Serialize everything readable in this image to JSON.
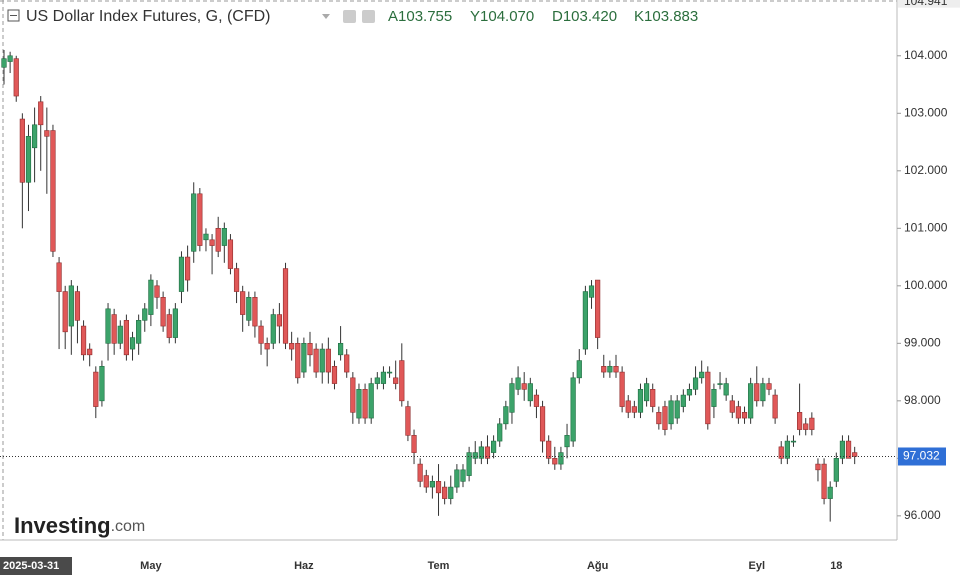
{
  "chart_data": {
    "type": "candlestick",
    "title": "US Dollar Index Futures, G, (CFD)",
    "stats": [
      "A103.755",
      "Y104.070",
      "D103.420",
      "K103.883"
    ],
    "watermark": [
      "Investing",
      ".com"
    ],
    "up_color": "#3ca36a",
    "down_color": "#e05858",
    "ylim": [
      95.58,
      104.97
    ],
    "yticks": [
      {
        "value": 96,
        "label": "96.000"
      },
      {
        "value": 97,
        "label": "97.000"
      },
      {
        "value": 98,
        "label": "98.000"
      },
      {
        "value": 99,
        "label": "99.000"
      },
      {
        "value": 100,
        "label": "100.000"
      },
      {
        "value": 101,
        "label": "101.000"
      },
      {
        "value": 102,
        "label": "102.000"
      },
      {
        "value": 103,
        "label": "103.000"
      },
      {
        "value": 104,
        "label": "104.000"
      }
    ],
    "axis_high": 104.941,
    "last_price": 97.032,
    "categories": [
      "2025-03-31",
      null,
      null,
      null,
      null,
      null,
      null,
      null,
      null,
      null,
      null,
      null,
      null,
      null,
      null,
      null,
      null,
      null,
      null,
      null,
      null,
      null,
      null,
      null,
      "May",
      null,
      null,
      null,
      null,
      null,
      null,
      null,
      null,
      null,
      null,
      null,
      null,
      null,
      null,
      null,
      null,
      null,
      null,
      null,
      null,
      null,
      null,
      null,
      null,
      "Haz",
      null,
      null,
      null,
      null,
      null,
      null,
      null,
      null,
      null,
      null,
      null,
      null,
      null,
      null,
      null,
      null,
      null,
      null,
      null,
      null,
      null,
      "Tem",
      null,
      null,
      null,
      null,
      null,
      null,
      null,
      null,
      null,
      null,
      null,
      null,
      null,
      null,
      null,
      null,
      null,
      null,
      null,
      null,
      null,
      null,
      null,
      null,
      null,
      "Ağu",
      null,
      null,
      null,
      null,
      null,
      null,
      null,
      null,
      null,
      null,
      null,
      null,
      null,
      null,
      null,
      null,
      null,
      null,
      null,
      null,
      null,
      null,
      null,
      null,
      null,
      "Eyl",
      null,
      null,
      null,
      null,
      null,
      null,
      null,
      null,
      null,
      null,
      null,
      null,
      "18",
      null,
      null,
      null
    ],
    "ohlc": [
      [
        103.8,
        104.1,
        103.5,
        103.95
      ],
      [
        103.9,
        104.07,
        103.7,
        104.0
      ],
      [
        103.95,
        104.0,
        103.2,
        103.3
      ],
      [
        102.9,
        103.0,
        101.0,
        101.8
      ],
      [
        101.8,
        102.8,
        101.3,
        102.6
      ],
      [
        102.4,
        103.1,
        101.8,
        102.8
      ],
      [
        103.2,
        103.3,
        102.0,
        102.8
      ],
      [
        102.7,
        103.1,
        101.6,
        102.6
      ],
      [
        102.7,
        102.8,
        100.5,
        100.6
      ],
      [
        100.4,
        100.5,
        98.9,
        99.9
      ],
      [
        99.9,
        100.0,
        98.9,
        99.2
      ],
      [
        99.3,
        100.1,
        98.8,
        100.0
      ],
      [
        99.9,
        100.0,
        99.0,
        99.4
      ],
      [
        99.3,
        99.4,
        98.7,
        98.8
      ],
      [
        98.9,
        99.0,
        98.6,
        98.8
      ],
      [
        98.5,
        98.6,
        97.7,
        97.9
      ],
      [
        98.0,
        98.7,
        97.9,
        98.6
      ],
      [
        99.0,
        99.7,
        98.7,
        99.6
      ],
      [
        99.5,
        99.6,
        98.8,
        99.0
      ],
      [
        99.0,
        99.4,
        98.9,
        99.3
      ],
      [
        99.4,
        99.5,
        98.7,
        98.8
      ],
      [
        98.9,
        99.2,
        98.7,
        99.1
      ],
      [
        99.0,
        99.5,
        98.8,
        99.4
      ],
      [
        99.4,
        99.7,
        99.2,
        99.6
      ],
      [
        99.5,
        100.2,
        99.3,
        100.1
      ],
      [
        100.0,
        100.1,
        99.6,
        99.8
      ],
      [
        99.8,
        99.9,
        99.2,
        99.3
      ],
      [
        99.5,
        99.6,
        99.0,
        99.1
      ],
      [
        99.1,
        99.7,
        99.0,
        99.6
      ],
      [
        99.9,
        100.6,
        99.7,
        100.5
      ],
      [
        100.5,
        100.7,
        99.9,
        100.1
      ],
      [
        100.6,
        101.8,
        100.4,
        101.6
      ],
      [
        101.6,
        101.7,
        100.6,
        100.7
      ],
      [
        100.8,
        101.0,
        100.6,
        100.9
      ],
      [
        100.8,
        100.9,
        100.2,
        100.7
      ],
      [
        101.0,
        101.2,
        100.5,
        100.6
      ],
      [
        100.7,
        101.1,
        100.4,
        101.0
      ],
      [
        100.8,
        100.9,
        100.2,
        100.3
      ],
      [
        100.3,
        100.4,
        99.7,
        99.9
      ],
      [
        99.9,
        100.0,
        99.2,
        99.5
      ],
      [
        99.4,
        99.9,
        99.3,
        99.8
      ],
      [
        99.8,
        99.9,
        99.1,
        99.3
      ],
      [
        99.3,
        99.4,
        98.8,
        99.0
      ],
      [
        99.0,
        99.1,
        98.6,
        98.9
      ],
      [
        99.0,
        99.6,
        98.9,
        99.5
      ],
      [
        99.5,
        99.7,
        99.0,
        99.3
      ],
      [
        100.3,
        100.4,
        98.9,
        99.0
      ],
      [
        99.0,
        99.2,
        98.7,
        98.9
      ],
      [
        99.0,
        99.1,
        98.3,
        98.4
      ],
      [
        98.5,
        99.1,
        98.4,
        99.0
      ],
      [
        99.0,
        99.2,
        98.6,
        98.8
      ],
      [
        98.9,
        99.0,
        98.4,
        98.5
      ],
      [
        98.5,
        99.0,
        98.3,
        98.9
      ],
      [
        98.9,
        99.1,
        98.3,
        98.5
      ],
      [
        98.6,
        98.7,
        98.2,
        98.3
      ],
      [
        98.8,
        99.3,
        98.7,
        99.0
      ],
      [
        98.8,
        98.9,
        98.4,
        98.5
      ],
      [
        98.4,
        98.5,
        97.6,
        97.8
      ],
      [
        97.7,
        98.3,
        97.6,
        98.2
      ],
      [
        98.2,
        98.3,
        97.6,
        97.7
      ],
      [
        97.7,
        98.4,
        97.6,
        98.3
      ],
      [
        98.3,
        98.5,
        98.2,
        98.4
      ],
      [
        98.3,
        98.6,
        98.2,
        98.5
      ],
      [
        98.5,
        98.6,
        98.4,
        98.5
      ],
      [
        98.4,
        98.7,
        98.2,
        98.3
      ],
      [
        98.7,
        99.0,
        97.9,
        98.0
      ],
      [
        97.9,
        98.0,
        97.3,
        97.4
      ],
      [
        97.4,
        97.5,
        96.9,
        97.1
      ],
      [
        96.9,
        97.0,
        96.5,
        96.6
      ],
      [
        96.7,
        96.8,
        96.4,
        96.5
      ],
      [
        96.5,
        96.7,
        96.3,
        96.6
      ],
      [
        96.6,
        96.9,
        96.0,
        96.4
      ],
      [
        96.5,
        96.6,
        96.2,
        96.3
      ],
      [
        96.3,
        96.7,
        96.2,
        96.5
      ],
      [
        96.5,
        96.9,
        96.4,
        96.8
      ],
      [
        96.6,
        96.9,
        96.5,
        96.8
      ],
      [
        96.7,
        97.2,
        96.6,
        97.1
      ],
      [
        97.0,
        97.3,
        96.9,
        97.1
      ],
      [
        97.0,
        97.3,
        96.9,
        97.2
      ],
      [
        97.2,
        97.4,
        96.9,
        97.0
      ],
      [
        97.1,
        97.4,
        97.0,
        97.3
      ],
      [
        97.3,
        97.7,
        97.2,
        97.6
      ],
      [
        97.6,
        98.0,
        97.5,
        97.9
      ],
      [
        97.8,
        98.4,
        97.6,
        98.3
      ],
      [
        98.2,
        98.6,
        98.1,
        98.4
      ],
      [
        98.3,
        98.5,
        98.0,
        98.2
      ],
      [
        98.0,
        98.4,
        97.9,
        98.3
      ],
      [
        98.1,
        98.2,
        97.7,
        97.9
      ],
      [
        97.9,
        98.0,
        97.1,
        97.3
      ],
      [
        97.3,
        97.4,
        96.9,
        97.0
      ],
      [
        97.0,
        97.2,
        96.8,
        96.9
      ],
      [
        96.9,
        97.2,
        96.8,
        97.1
      ],
      [
        97.2,
        97.6,
        97.0,
        97.4
      ],
      [
        97.3,
        98.5,
        97.2,
        98.4
      ],
      [
        98.4,
        98.9,
        98.3,
        98.7
      ],
      [
        98.9,
        100.0,
        98.8,
        99.9
      ],
      [
        99.8,
        100.1,
        99.6,
        100.0
      ],
      [
        100.1,
        100.1,
        98.9,
        99.1
      ],
      [
        98.6,
        98.8,
        98.4,
        98.5
      ],
      [
        98.5,
        98.7,
        98.4,
        98.6
      ],
      [
        98.6,
        98.8,
        98.4,
        98.5
      ],
      [
        98.5,
        98.6,
        97.8,
        97.9
      ],
      [
        98.0,
        98.1,
        97.7,
        97.8
      ],
      [
        97.9,
        98.0,
        97.7,
        97.8
      ],
      [
        97.8,
        98.3,
        97.7,
        98.2
      ],
      [
        98.0,
        98.4,
        97.9,
        98.3
      ],
      [
        98.2,
        98.3,
        97.8,
        97.9
      ],
      [
        97.8,
        97.9,
        97.5,
        97.6
      ],
      [
        97.9,
        98.0,
        97.4,
        97.5
      ],
      [
        97.6,
        98.1,
        97.5,
        98.0
      ],
      [
        97.7,
        98.1,
        97.6,
        98.0
      ],
      [
        97.9,
        98.2,
        97.8,
        98.1
      ],
      [
        98.1,
        98.3,
        98.0,
        98.2
      ],
      [
        98.2,
        98.6,
        98.1,
        98.4
      ],
      [
        98.4,
        98.7,
        98.3,
        98.5
      ],
      [
        98.5,
        98.6,
        97.5,
        97.6
      ],
      [
        97.9,
        98.3,
        97.7,
        98.2
      ],
      [
        98.3,
        98.5,
        98.2,
        98.3
      ],
      [
        98.1,
        98.4,
        98.0,
        98.3
      ],
      [
        98.0,
        98.1,
        97.7,
        97.8
      ],
      [
        97.9,
        98.0,
        97.6,
        97.7
      ],
      [
        97.8,
        97.9,
        97.6,
        97.7
      ],
      [
        97.7,
        98.4,
        97.6,
        98.3
      ],
      [
        98.3,
        98.6,
        97.9,
        98.0
      ],
      [
        98.0,
        98.4,
        97.9,
        98.3
      ],
      [
        98.3,
        98.4,
        98.1,
        98.2
      ],
      [
        98.1,
        98.2,
        97.6,
        97.7
      ],
      [
        97.2,
        97.3,
        96.9,
        97.0
      ],
      [
        97.0,
        97.4,
        96.9,
        97.3
      ],
      [
        97.3,
        97.4,
        97.2,
        97.3
      ],
      [
        97.8,
        98.3,
        97.4,
        97.5
      ],
      [
        97.6,
        97.7,
        97.4,
        97.5
      ],
      [
        97.7,
        97.8,
        97.4,
        97.5
      ],
      [
        96.9,
        97.0,
        96.6,
        96.8
      ],
      [
        96.9,
        97.0,
        96.2,
        96.3
      ],
      [
        96.3,
        96.6,
        95.9,
        96.5
      ],
      [
        96.6,
        97.1,
        96.5,
        97.0
      ],
      [
        97.0,
        97.4,
        96.9,
        97.3
      ],
      [
        97.3,
        97.4,
        97.0,
        97.0
      ],
      [
        97.1,
        97.2,
        96.9,
        97.032
      ]
    ]
  }
}
